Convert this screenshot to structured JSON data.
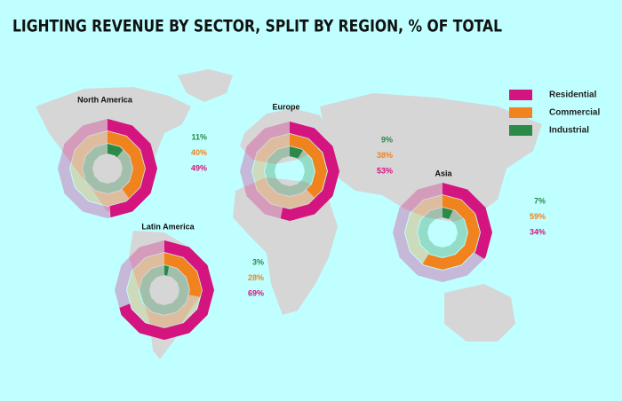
{
  "title": "LIGHTING REVENUE BY SECTOR, SPLIT BY REGION, % OF TOTAL",
  "legend": [
    {
      "name": "Residential",
      "color": "#d4147f"
    },
    {
      "name": "Commercial",
      "color": "#f0831e"
    },
    {
      "name": "Industrial",
      "color": "#2b8a48"
    }
  ],
  "chart_data": [
    {
      "type": "radial",
      "title": "North America",
      "values": [
        49,
        40,
        11
      ],
      "value_labels": [
        "49%",
        "40%",
        "11%"
      ]
    },
    {
      "type": "radial",
      "title": "Europe",
      "values": [
        53,
        38,
        9
      ],
      "value_labels": [
        "53%",
        "38%",
        "9%"
      ]
    },
    {
      "type": "radial",
      "title": "Asia",
      "values": [
        34,
        59,
        7
      ],
      "value_labels": [
        "34%",
        "59%",
        "7%"
      ]
    },
    {
      "type": "radial",
      "title": "Latin America",
      "values": [
        69,
        28,
        3
      ],
      "value_labels": [
        "69%",
        "28%",
        "3%"
      ]
    }
  ]
}
